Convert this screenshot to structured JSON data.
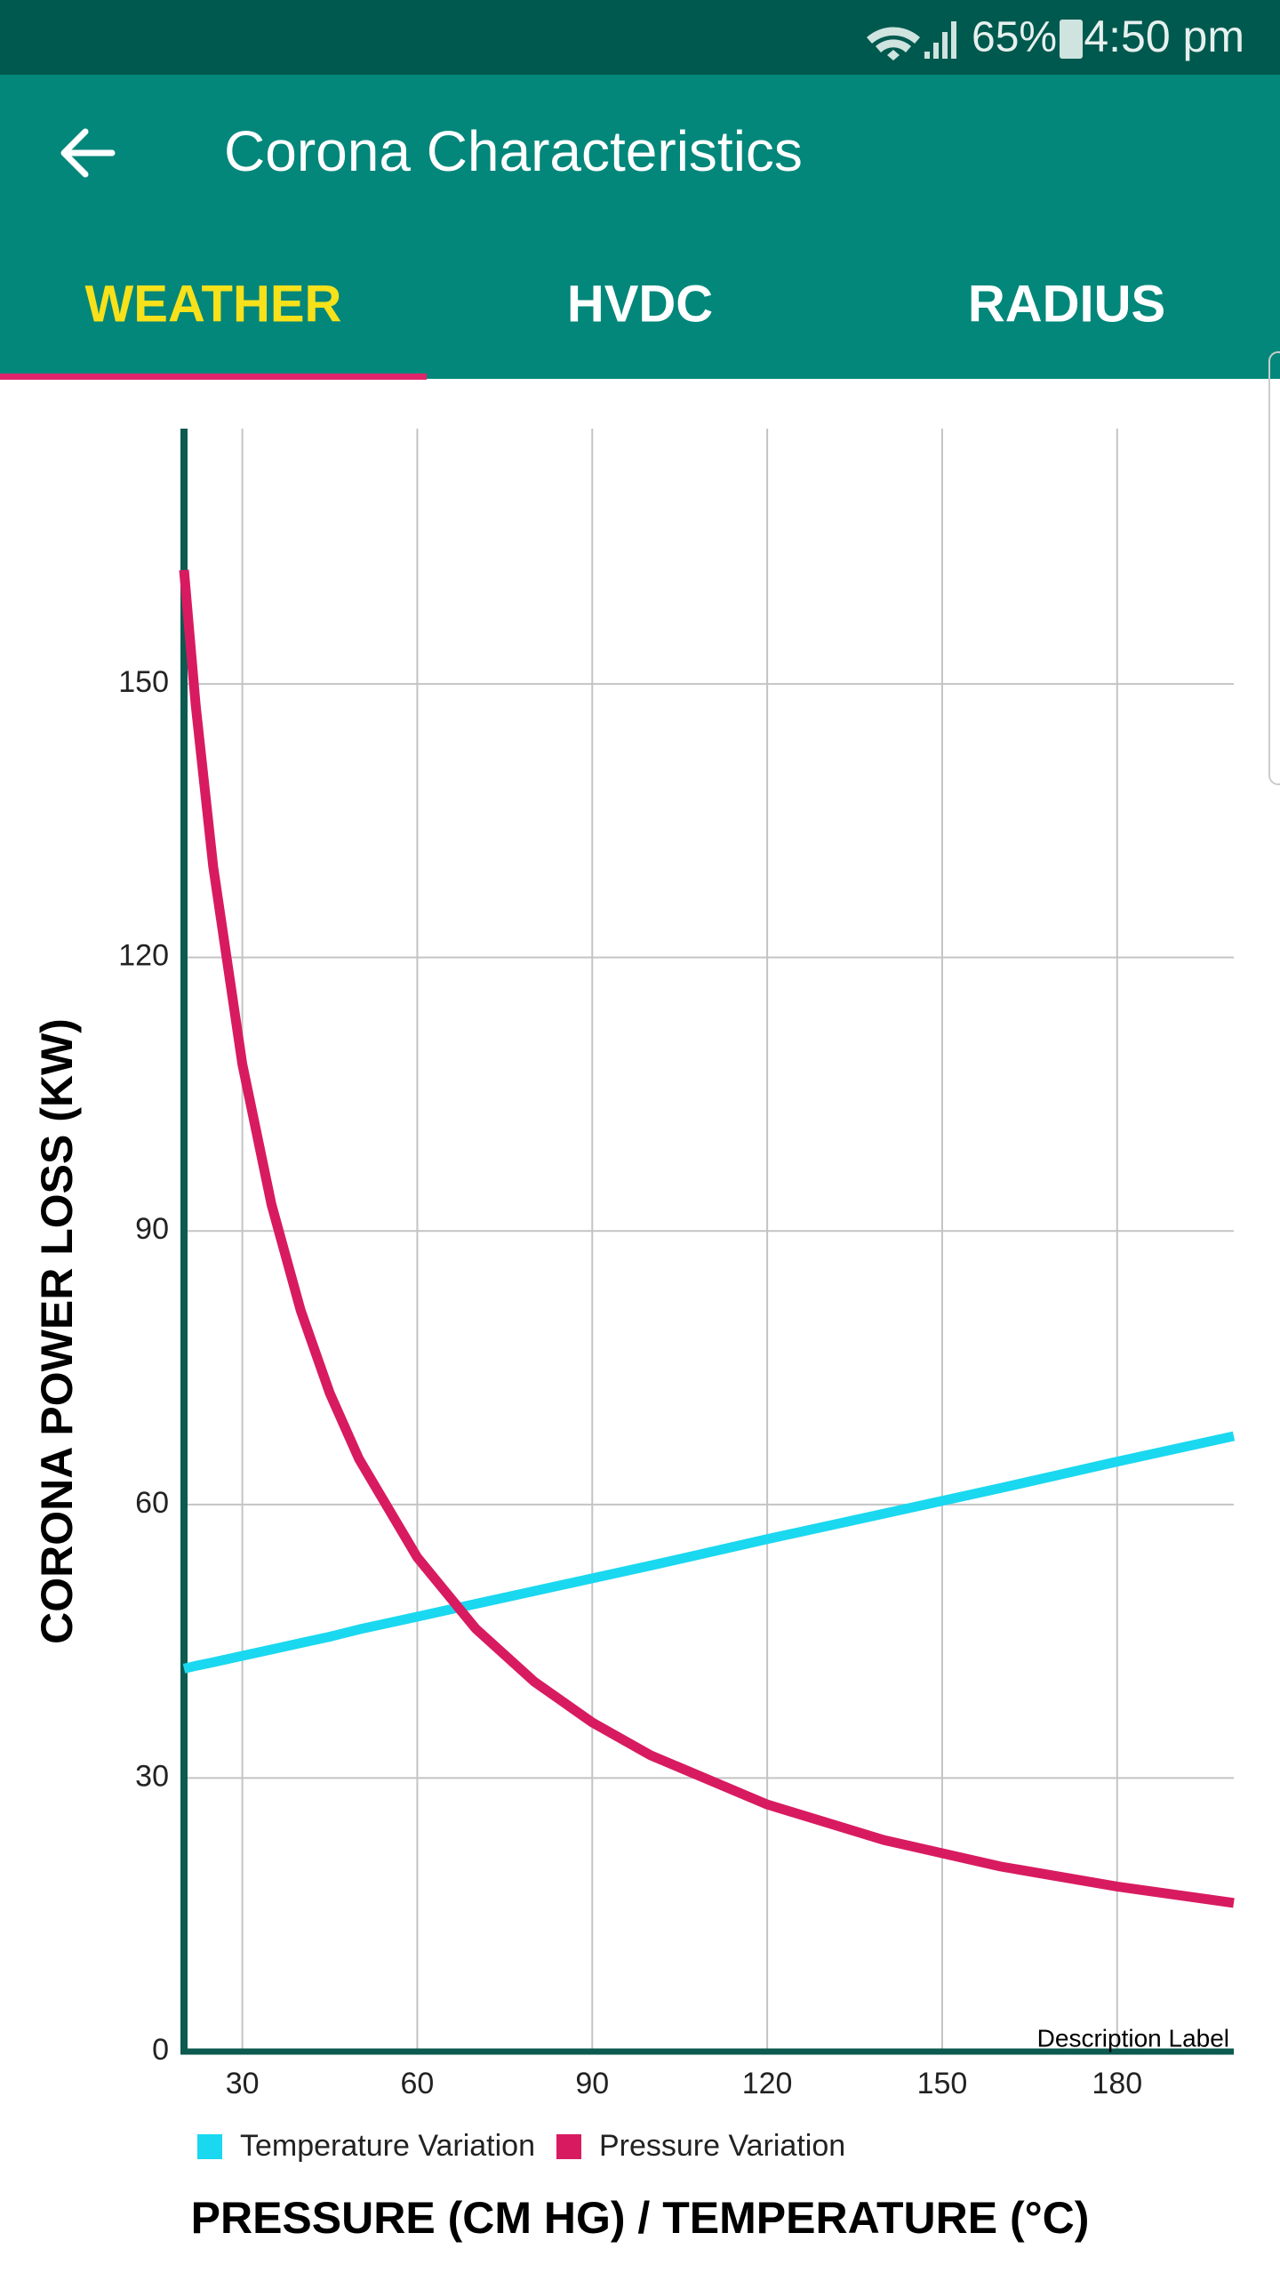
{
  "status_bar": {
    "battery": "65%",
    "time": "4:50 pm"
  },
  "app_bar": {
    "title": "Corona Characteristics"
  },
  "tabs": [
    "WEATHER",
    "HVDC",
    "RADIUS"
  ],
  "chart_data": {
    "type": "line",
    "x_label": "PRESSURE (CM HG) / TEMPERATURE (°C)",
    "y_label": "CORONA POWER LOSS (KW)",
    "description": "Description Label",
    "x": [
      20,
      22,
      25,
      30,
      35,
      40,
      45,
      50,
      60,
      70,
      80,
      90,
      100,
      120,
      140,
      160,
      180,
      200
    ],
    "series": [
      {
        "name": "Temperature Variation",
        "color": "#1ad8ef",
        "values": [
          42,
          42.3,
          42.7,
          43.4,
          44.1,
          44.8,
          45.5,
          46.3,
          47.7,
          49.1,
          50.5,
          51.9,
          53.3,
          56.2,
          59,
          61.8,
          64.7,
          67.5
        ]
      },
      {
        "name": "Pressure Variation",
        "color": "#d81b60",
        "values": [
          162.5,
          147.7,
          130,
          108.3,
          92.9,
          81.3,
          72.2,
          65,
          54.2,
          46.4,
          40.6,
          36.1,
          32.5,
          27.1,
          23.2,
          20.3,
          18.1,
          16.3
        ]
      }
    ],
    "xlim": [
      20,
      200
    ],
    "ylim": [
      0,
      178
    ],
    "xticks": [
      30,
      60,
      90,
      120,
      150,
      180
    ],
    "yticks": [
      0,
      30,
      60,
      90,
      120,
      150
    ],
    "grid": true
  }
}
